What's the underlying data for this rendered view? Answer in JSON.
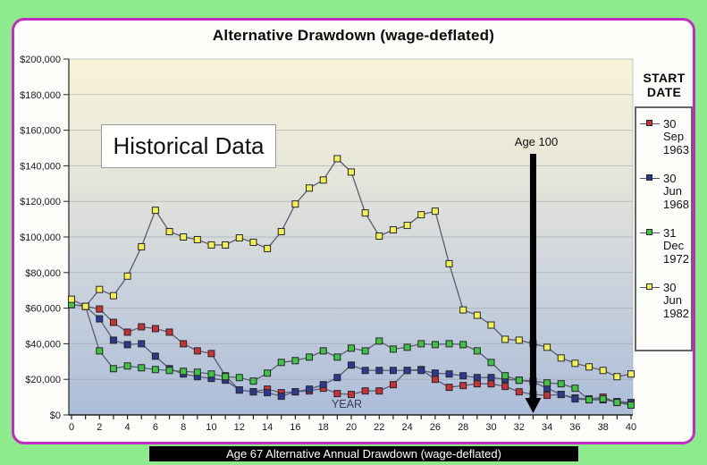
{
  "page": {
    "title": "Alternative Drawdown (wage-deflated)",
    "footer": "Age 67 Alternative Annual Drawdown (wage-deflated)"
  },
  "annotations": {
    "historical_data": "Historical Data",
    "age_100": "Age 100",
    "age_100_year": 33
  },
  "legend": {
    "title": "START DATE",
    "title_lines": [
      "START",
      "DATE"
    ],
    "items": [
      {
        "lines": [
          "30",
          "Sep",
          "1963"
        ],
        "color": "#c83232"
      },
      {
        "lines": [
          "30",
          "Jun",
          "1968"
        ],
        "color": "#2b3a8f"
      },
      {
        "lines": [
          "31",
          "Dec",
          "1972"
        ],
        "color": "#3fc43f"
      },
      {
        "lines": [
          "30",
          "Jun",
          "1982"
        ],
        "color": "#f5f151"
      }
    ]
  },
  "axes": {
    "y_labels": [
      "$200,000",
      "$180,000",
      "$160,000",
      "$140,000",
      "$120,000",
      "$100,000",
      "$80,000",
      "$60,000",
      "$40,000",
      "$20,000",
      "$0"
    ],
    "x_labels": [
      "0",
      "2",
      "4",
      "6",
      "8",
      "10",
      "12",
      "14",
      "16",
      "18",
      "20",
      "22",
      "24",
      "26",
      "28",
      "30",
      "32",
      "34",
      "36",
      "38",
      "40"
    ],
    "x_title": "YEAR"
  },
  "colors": {
    "page_bg": "#8deb8d",
    "card_border": "#c32cc3",
    "plot_gradient_top": "#f8f3d9",
    "plot_gradient_bottom": "#acbdd9",
    "series_line": "#5c5c72",
    "arrow": "#000000"
  },
  "chart_data": {
    "type": "line",
    "title": "Alternative Drawdown (wage-deflated)",
    "xlabel": "YEAR",
    "ylabel": "",
    "xlim": [
      0,
      40
    ],
    "ylim": [
      0,
      200000
    ],
    "x_step": 1,
    "grid": "horizontal, every $20,000",
    "legend_position": "right",
    "x": [
      0,
      1,
      2,
      3,
      4,
      5,
      6,
      7,
      8,
      9,
      10,
      11,
      12,
      13,
      14,
      15,
      16,
      17,
      18,
      19,
      20,
      21,
      22,
      23,
      24,
      25,
      26,
      27,
      28,
      29,
      30,
      31,
      32,
      33,
      34,
      35,
      36,
      37,
      38,
      39,
      40
    ],
    "series": [
      {
        "name": "30 Sep 1963",
        "color": "#c83232",
        "values": [
          62000,
          61000,
          59500,
          52000,
          46500,
          49500,
          48500,
          46500,
          40000,
          36000,
          34500,
          22000,
          14000,
          13000,
          14500,
          12500,
          13000,
          13500,
          15000,
          12000,
          11500,
          13500,
          13500,
          17000,
          25000,
          25500,
          20000,
          15500,
          16500,
          17500,
          17500,
          16000,
          13000,
          11500,
          11000,
          11500,
          9500,
          9000,
          10000,
          7000,
          6500
        ]
      },
      {
        "name": "30 Jun 1968",
        "color": "#2b3a8f",
        "values": [
          62000,
          61000,
          54000,
          42000,
          39500,
          40000,
          33000,
          26000,
          23000,
          21500,
          20500,
          19500,
          14000,
          13000,
          12500,
          10500,
          13000,
          14500,
          17000,
          21000,
          28000,
          25000,
          25000,
          25000,
          25000,
          25000,
          23500,
          23000,
          22000,
          21000,
          21000,
          20000,
          19500,
          18500,
          15000,
          11500,
          9000,
          8500,
          8500,
          7500,
          7000
        ]
      },
      {
        "name": "31 Dec 1972",
        "color": "#3fc43f",
        "values": [
          62000,
          61000,
          36000,
          26000,
          27500,
          26500,
          25500,
          25000,
          24500,
          24000,
          23000,
          21500,
          21000,
          19000,
          23500,
          29500,
          30500,
          32500,
          36000,
          32500,
          37500,
          36000,
          41500,
          37000,
          38000,
          40000,
          39500,
          40000,
          39500,
          36000,
          29500,
          22000,
          19500,
          19000,
          18000,
          17500,
          15000,
          8500,
          9000,
          7000,
          5500
        ]
      },
      {
        "name": "30 Jun 1982",
        "color": "#f5f151",
        "values": [
          65000,
          61000,
          70500,
          67000,
          78000,
          94500,
          115000,
          103000,
          100000,
          98500,
          95500,
          95500,
          99500,
          97000,
          93500,
          103000,
          118500,
          127500,
          132000,
          144000,
          136500,
          113500,
          100500,
          104000,
          106500,
          112500,
          114500,
          85000,
          59000,
          56000,
          50500,
          42500,
          42000,
          40000,
          38000,
          32000,
          29000,
          27000,
          25000,
          21500,
          23000
        ]
      }
    ]
  }
}
